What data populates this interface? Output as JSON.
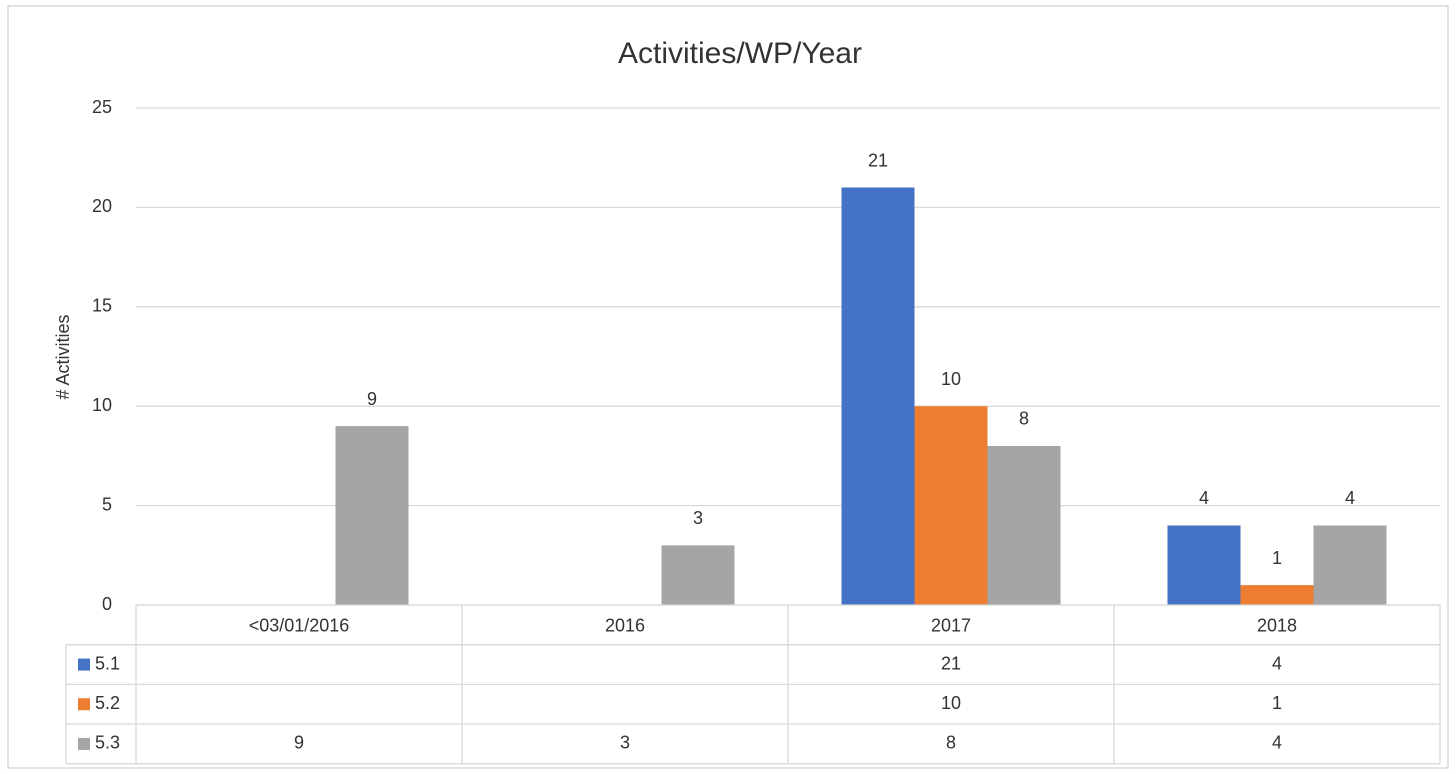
{
  "chart_data": {
    "type": "bar",
    "title": "Activities/WP/Year",
    "y_label": "# Activities",
    "categories": [
      "<03/01/2016",
      "2016",
      "2017",
      "2018"
    ],
    "series": [
      {
        "name": "5.1",
        "color": "#4472c4",
        "values": [
          null,
          null,
          21,
          4
        ]
      },
      {
        "name": "5.2",
        "color": "#ed7d31",
        "values": [
          null,
          null,
          10,
          1
        ]
      },
      {
        "name": "5.3",
        "color": "#a5a5a5",
        "values": [
          9,
          3,
          8,
          4
        ]
      }
    ],
    "ylim": [
      0,
      25
    ],
    "yticks": [
      0,
      5,
      10,
      15,
      20,
      25
    ],
    "grid": true,
    "data_table": true
  }
}
